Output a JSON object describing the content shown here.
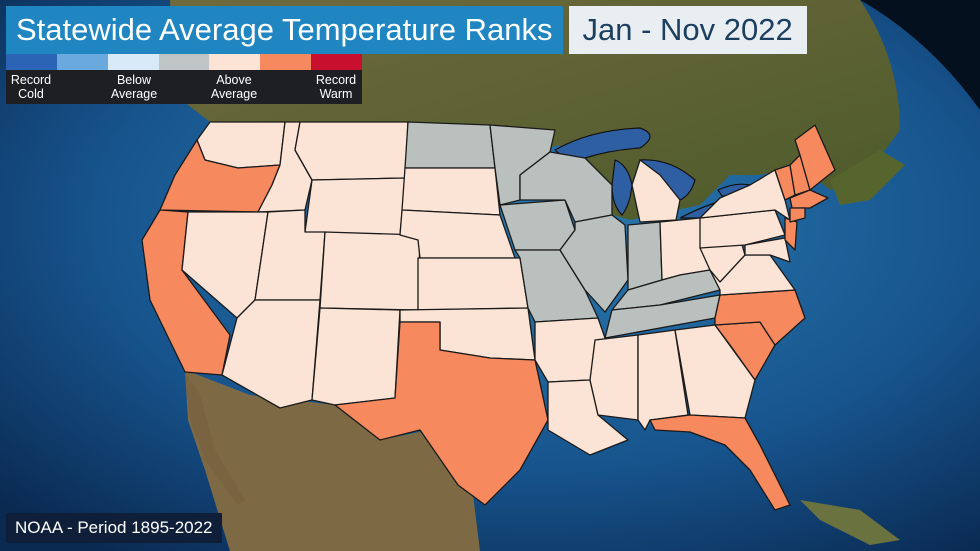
{
  "title": "Statewide Average Temperature Ranks",
  "date_range": "Jan - Nov 2022",
  "source": "NOAA - Period 1895-2022",
  "legend": {
    "swatches": [
      {
        "color": "#2b63b5"
      },
      {
        "color": "#6aa9dd"
      },
      {
        "color": "#d8eaf7"
      },
      {
        "color": "#bfc4c4"
      },
      {
        "color": "#fbe3d5"
      },
      {
        "color": "#f6895e"
      },
      {
        "color": "#c8102e"
      }
    ],
    "labels": [
      {
        "text": "Record\nCold"
      },
      {
        "text": "Below\nAverage"
      },
      {
        "text": "Above\nAverage"
      },
      {
        "text": "Record\nWarm"
      }
    ]
  },
  "colors": {
    "near_average": "#b9c0bd",
    "above_average": "#fbe3d5",
    "much_above_average": "#f6895e",
    "ocean": "#1d5f96",
    "lakes": "#2f5fa3"
  }
}
